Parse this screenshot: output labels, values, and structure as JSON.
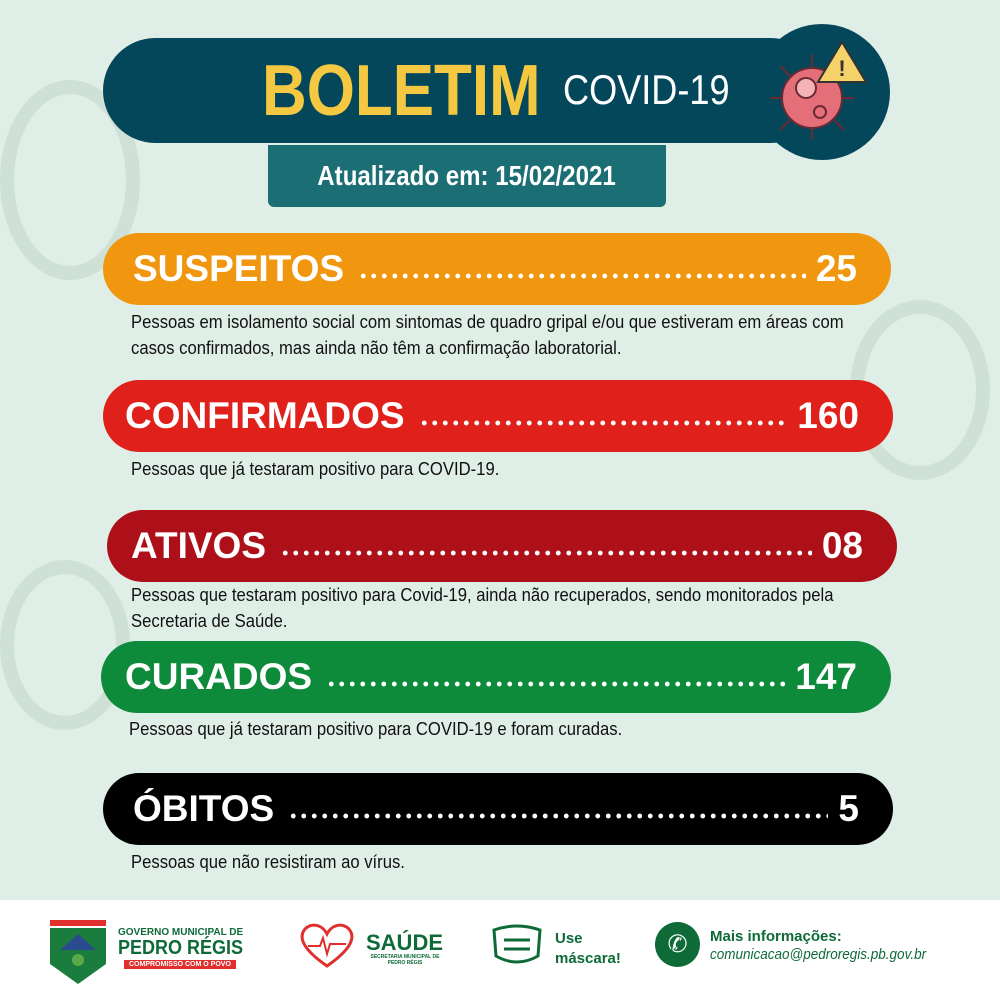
{
  "header": {
    "title": "BOLETIM",
    "subtitle": "COVID-19",
    "updated": "Atualizado em: 15/02/2021"
  },
  "stats": [
    {
      "label": "SUSPEITOS",
      "value": "25",
      "color": "#f0960f",
      "description": "Pessoas em isolamento social com sintomas de quadro gripal e/ou que estiveram em áreas com casos confirmados, mas ainda não têm a confirmação laboratorial."
    },
    {
      "label": "CONFIRMADOS",
      "value": "160",
      "color": "#e0201b",
      "description": "Pessoas que já testaram positivo para COVID-19."
    },
    {
      "label": "ATIVOS",
      "value": "08",
      "color": "#ad1018",
      "description": "Pessoas que testaram positivo para Covid-19, ainda não recuperados, sendo monitorados pela Secretaria de Saúde."
    },
    {
      "label": "CURADOS",
      "value": "147",
      "color": "#0d8b3a",
      "description": "Pessoas que já testaram positivo para COVID-19 e foram curadas."
    },
    {
      "label": "ÓBITOS",
      "value": "5",
      "color": "#000000",
      "description": "Pessoas que não resistiram ao vírus."
    }
  ],
  "footer": {
    "gov_line1": "GOVERNO MUNICIPAL DE",
    "gov_line2": "PEDRO RÉGIS",
    "gov_slogan": "COMPROMISSO COM O POVO",
    "saude": "SAÚDE",
    "saude_sub": "SECRETARIA MUNICIPAL DE PEDRO RÉGIS",
    "mask": "Use máscara!",
    "info_label": "Mais informações:",
    "email": "comunicacao@pedroregis.pb.gov.br"
  }
}
